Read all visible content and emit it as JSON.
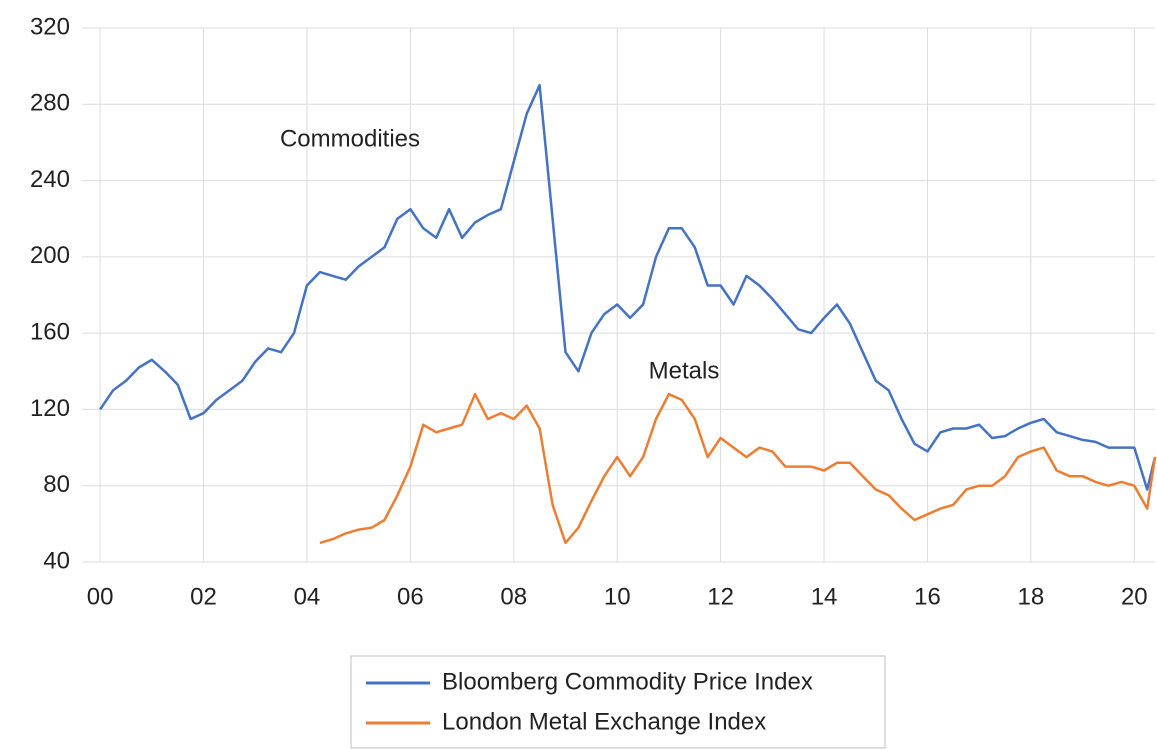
{
  "chart_data": {
    "type": "line",
    "annotations": [
      "Commodities",
      "Metals"
    ],
    "x": [
      2000,
      2000.25,
      2000.5,
      2000.75,
      2001,
      2001.25,
      2001.5,
      2001.75,
      2002,
      2002.25,
      2002.5,
      2002.75,
      2003,
      2003.25,
      2003.5,
      2003.75,
      2004,
      2004.25,
      2004.5,
      2004.75,
      2005,
      2005.25,
      2005.5,
      2005.75,
      2006,
      2006.25,
      2006.5,
      2006.75,
      2007,
      2007.25,
      2007.5,
      2007.75,
      2008,
      2008.25,
      2008.5,
      2008.75,
      2009,
      2009.25,
      2009.5,
      2009.75,
      2010,
      2010.25,
      2010.5,
      2010.75,
      2011,
      2011.25,
      2011.5,
      2011.75,
      2012,
      2012.25,
      2012.5,
      2012.75,
      2013,
      2013.25,
      2013.5,
      2013.75,
      2014,
      2014.25,
      2014.5,
      2014.75,
      2015,
      2015.25,
      2015.5,
      2015.75,
      2016,
      2016.25,
      2016.5,
      2016.75,
      2017,
      2017.25,
      2017.5,
      2017.75,
      2018,
      2018.25,
      2018.5,
      2018.75,
      2019,
      2019.25,
      2019.5,
      2019.75,
      2020,
      2020.25,
      2020.4
    ],
    "series": [
      {
        "name": "Bloomberg Commodity Price Index",
        "color": "#4472c4",
        "values": [
          120,
          130,
          135,
          142,
          146,
          140,
          133,
          115,
          118,
          125,
          130,
          135,
          145,
          152,
          150,
          160,
          185,
          192,
          190,
          188,
          195,
          200,
          205,
          220,
          225,
          215,
          210,
          225,
          210,
          218,
          222,
          225,
          250,
          275,
          290,
          220,
          150,
          140,
          160,
          170,
          175,
          168,
          175,
          200,
          215,
          215,
          205,
          185,
          185,
          175,
          190,
          185,
          178,
          170,
          162,
          160,
          168,
          175,
          165,
          150,
          135,
          130,
          115,
          102,
          98,
          108,
          110,
          110,
          112,
          105,
          106,
          110,
          113,
          115,
          108,
          106,
          104,
          103,
          100,
          100,
          100,
          78,
          95
        ]
      },
      {
        "name": "London Metal Exchange Index",
        "color": "#ed7d31",
        "values": [
          null,
          null,
          null,
          null,
          null,
          null,
          null,
          null,
          null,
          null,
          null,
          null,
          null,
          null,
          null,
          null,
          null,
          50,
          52,
          55,
          57,
          58,
          62,
          75,
          90,
          112,
          108,
          110,
          112,
          128,
          115,
          118,
          115,
          122,
          110,
          70,
          50,
          58,
          72,
          85,
          95,
          85,
          95,
          115,
          128,
          125,
          115,
          95,
          105,
          100,
          95,
          100,
          98,
          90,
          90,
          90,
          88,
          92,
          92,
          85,
          78,
          75,
          68,
          62,
          65,
          68,
          70,
          78,
          80,
          80,
          85,
          95,
          98,
          100,
          88,
          85,
          85,
          82,
          80,
          82,
          80,
          68,
          95
        ]
      }
    ],
    "xlim": [
      1999.65,
      2020.4
    ],
    "xticks": [
      {
        "value": 2000,
        "label": "00"
      },
      {
        "value": 2002,
        "label": "02"
      },
      {
        "value": 2004,
        "label": "04"
      },
      {
        "value": 2006,
        "label": "06"
      },
      {
        "value": 2008,
        "label": "08"
      },
      {
        "value": 2010,
        "label": "10"
      },
      {
        "value": 2012,
        "label": "12"
      },
      {
        "value": 2014,
        "label": "14"
      },
      {
        "value": 2016,
        "label": "16"
      },
      {
        "value": 2018,
        "label": "18"
      },
      {
        "value": 2020,
        "label": "20"
      }
    ],
    "ylim": [
      40,
      320
    ],
    "yticks": [
      40,
      80,
      120,
      160,
      200,
      240,
      280,
      320
    ],
    "grid": true,
    "legend": "bottom"
  }
}
